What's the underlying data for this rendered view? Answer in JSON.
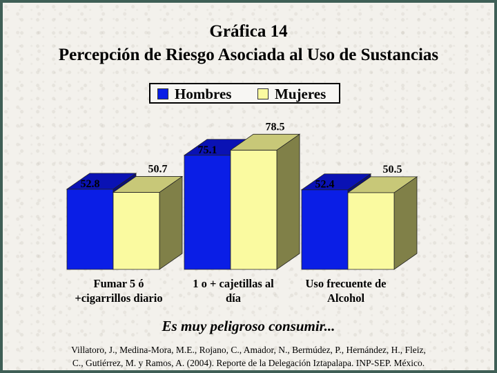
{
  "title": "Gráfica 14",
  "subtitle": "Percepción de Riesgo Asociada al Uso de Sustancias",
  "caption": "Es muy peligroso consumir...",
  "citation": {
    "line1": "Villatoro, J., Medina-Mora, M.E., Rojano, C., Amador, N., Bermúdez, P., Hernández, H., Fleiz,",
    "line2": "C., Gutiérrez, M. y Ramos, A. (2004). Reporte de la Delegación Iztapalapa. INP-SEP. México."
  },
  "legend": {
    "hombres": "Hombres",
    "mujeres": "Mujeres"
  },
  "colors": {
    "hombres": "#0a1ee6",
    "mujeres": "#fafaa0",
    "frame": "#3f5f56"
  },
  "chart_data": {
    "type": "bar",
    "title": "Gráfica 14",
    "subtitle": "Percepción de Riesgo Asociada al Uso de Sustancias",
    "categories": [
      [
        "Fumar 5 ó",
        "+cigarrillos diario"
      ],
      [
        "1 o + cajetillas al",
        "día"
      ],
      [
        "Uso frecuente de",
        "Alcohol"
      ]
    ],
    "series": [
      {
        "name": "Hombres",
        "values": [
          52.8,
          75.1,
          52.4
        ]
      },
      {
        "name": "Mujeres",
        "values": [
          50.7,
          78.5,
          50.5
        ]
      }
    ],
    "grid": false,
    "legend_position": "top",
    "three_d": true
  }
}
